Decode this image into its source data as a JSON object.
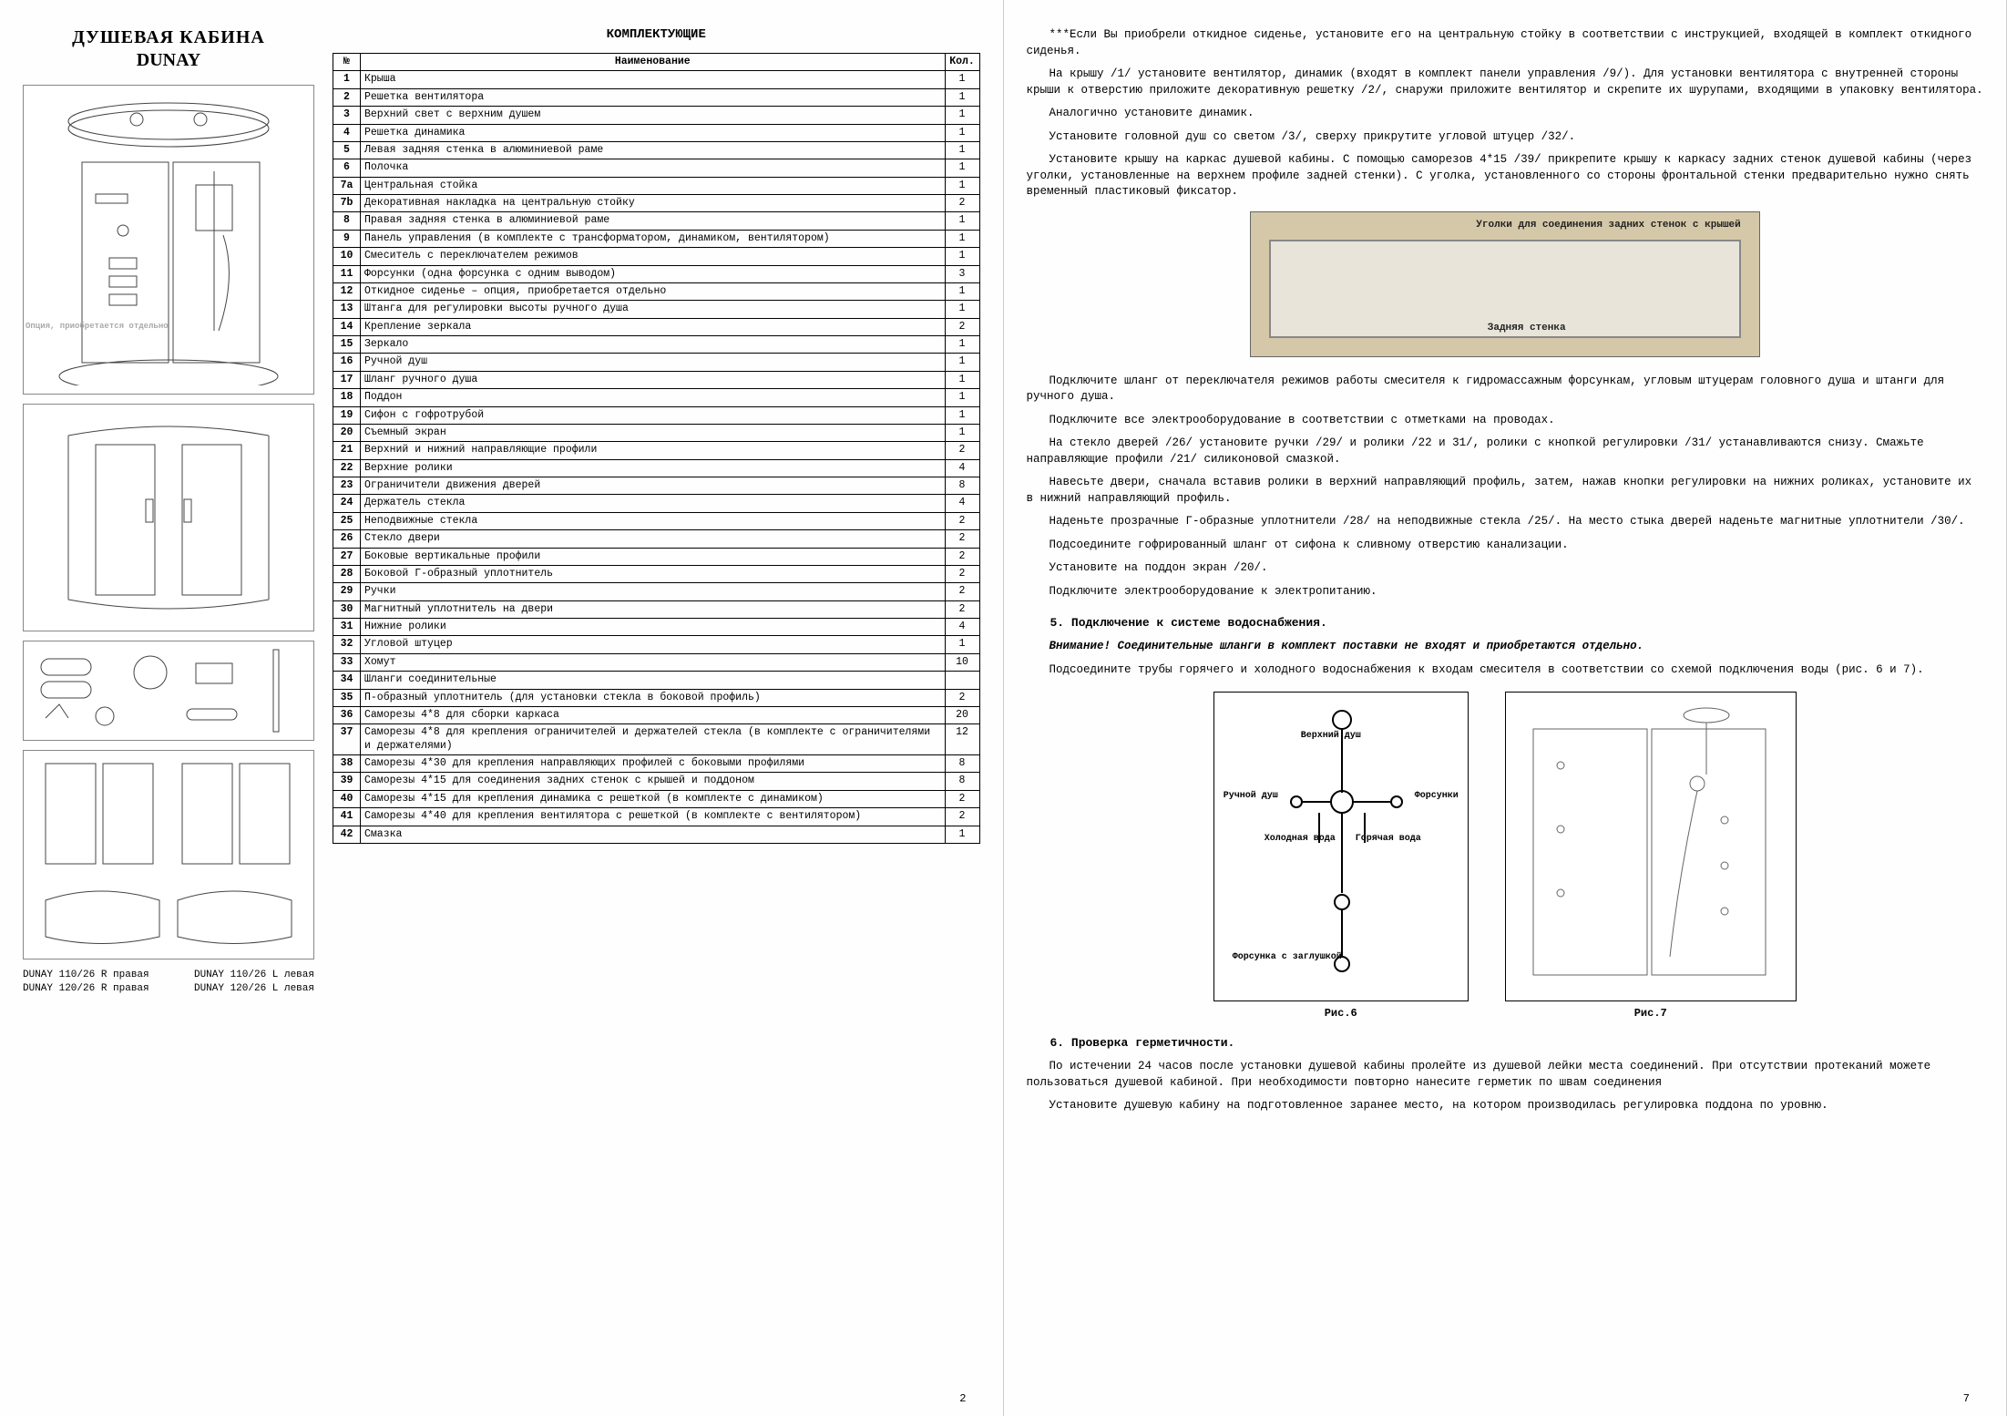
{
  "leftPage": {
    "title": "ДУШЕВАЯ КАБИНА",
    "subtitle": "DUNAY",
    "componentsHeader": "КОМПЛЕКТУЮЩИЕ",
    "optionLabel": "Опция,\nприобретается\nотдельно",
    "tableHeaders": {
      "num": "№",
      "name": "Наименование",
      "qty": "Кол."
    },
    "parts": [
      {
        "n": "1",
        "name": "Крыша",
        "q": "1"
      },
      {
        "n": "2",
        "name": "Решетка вентилятора",
        "q": "1"
      },
      {
        "n": "3",
        "name": "Верхний свет с верхним душем",
        "q": "1"
      },
      {
        "n": "4",
        "name": "Решетка динамика",
        "q": "1"
      },
      {
        "n": "5",
        "name": "Левая задняя стенка в алюминиевой раме",
        "q": "1"
      },
      {
        "n": "6",
        "name": "Полочка",
        "q": "1"
      },
      {
        "n": "7а",
        "name": "Центральная стойка",
        "q": "1"
      },
      {
        "n": "7b",
        "name": "Декоративная накладка на центральную стойку",
        "q": "2"
      },
      {
        "n": "8",
        "name": "Правая задняя стенка в алюминиевой раме",
        "q": "1"
      },
      {
        "n": "9",
        "name": "Панель управления (в комплекте с трансформатором, динамиком, вентилятором)",
        "q": "1"
      },
      {
        "n": "10",
        "name": "Смеситель с переключателем режимов",
        "q": "1"
      },
      {
        "n": "11",
        "name": "Форсунки (одна форсунка с одним выводом)",
        "q": "3"
      },
      {
        "n": "12",
        "name": "Откидное сиденье – опция, приобретается отдельно",
        "q": "1"
      },
      {
        "n": "13",
        "name": "Штанга для регулировки высоты ручного душа",
        "q": "1"
      },
      {
        "n": "14",
        "name": "Крепление зеркала",
        "q": "2"
      },
      {
        "n": "15",
        "name": "Зеркало",
        "q": "1"
      },
      {
        "n": "16",
        "name": "Ручной душ",
        "q": "1"
      },
      {
        "n": "17",
        "name": "Шланг ручного душа",
        "q": "1"
      },
      {
        "n": "18",
        "name": "Поддон",
        "q": "1"
      },
      {
        "n": "19",
        "name": "Сифон с гофротрубой",
        "q": "1"
      },
      {
        "n": "20",
        "name": "Съемный экран",
        "q": "1"
      },
      {
        "n": "21",
        "name": "Верхний и нижний направляющие профили",
        "q": "2"
      },
      {
        "n": "22",
        "name": "Верхние ролики",
        "q": "4"
      },
      {
        "n": "23",
        "name": "Ограничители движения дверей",
        "q": "8"
      },
      {
        "n": "24",
        "name": "Держатель стекла",
        "q": "4"
      },
      {
        "n": "25",
        "name": "Неподвижные стекла",
        "q": "2"
      },
      {
        "n": "26",
        "name": "Стекло двери",
        "q": "2"
      },
      {
        "n": "27",
        "name": "Боковые вертикальные профили",
        "q": "2"
      },
      {
        "n": "28",
        "name": "Боковой Г-образный уплотнитель",
        "q": "2"
      },
      {
        "n": "29",
        "name": "Ручки",
        "q": "2"
      },
      {
        "n": "30",
        "name": "Магнитный уплотнитель на двери",
        "q": "2"
      },
      {
        "n": "31",
        "name": "Нижние ролики",
        "q": "4"
      },
      {
        "n": "32",
        "name": "Угловой штуцер",
        "q": "1"
      },
      {
        "n": "33",
        "name": "Хомут",
        "q": "10"
      },
      {
        "n": "34",
        "name": "Шланги соединительные",
        "q": ""
      },
      {
        "n": "35",
        "name": "П-образный уплотнитель (для установки стекла в боковой профиль)",
        "q": "2"
      },
      {
        "n": "36",
        "name": "Саморезы 4*8 для сборки каркаса",
        "q": "20"
      },
      {
        "n": "37",
        "name": "Саморезы 4*8 для крепления ограничителей и держателей стекла (в комплекте с ограничителями и держателями)",
        "q": "12"
      },
      {
        "n": "38",
        "name": "Саморезы 4*30 для крепления направляющих профилей с боковыми профилями",
        "q": "8"
      },
      {
        "n": "39",
        "name": "Саморезы 4*15 для соединения задних стенок с крышей и поддоном",
        "q": "8"
      },
      {
        "n": "40",
        "name": "Саморезы 4*15 для крепления динамика с решеткой (в комплекте с динамиком)",
        "q": "2"
      },
      {
        "n": "41",
        "name": "Саморезы 4*40 для крепления вентилятора с решеткой (в комплекте с вентилятором)",
        "q": "2"
      },
      {
        "n": "42",
        "name": "Смазка",
        "q": "1"
      }
    ],
    "variants": {
      "leftTop": "DUNAY 110/26 R правая",
      "leftBot": "DUNAY 120/26 R правая",
      "rightTop": "DUNAY 110/26 L левая",
      "rightBot": "DUNAY 120/26 L левая"
    },
    "pageNum": "2"
  },
  "rightPage": {
    "paragraphs1": [
      "***Если Вы приобрели откидное сиденье, установите его на центральную стойку в соответствии с инструкцией, входящей в комплект откидного сиденья.",
      "На крышу /1/ установите вентилятор, динамик (входят в комплект панели управления /9/). Для установки вентилятора с внутренней стороны крыши к отверстию приложите декоративную решетку /2/, снаружи приложите вентилятор и скрепите их шурупами, входящими в упаковку вентилятора.",
      "Аналогично установите динамик.",
      "Установите головной душ со светом /3/, сверху прикрутите угловой штуцер /32/.",
      "Установите крышу на каркас душевой кабины. С помощью саморезов 4*15 /39/ прикрепите крышу к каркасу задних стенок душевой кабины (через уголки, установленные на верхнем профиле задней стенки). С уголка, установленного со стороны фронтальной стенки предварительно нужно снять временный пластиковый фиксатор."
    ],
    "photoCaption1": "Уголки для соединения задних стенок с крышей",
    "photoCaption2": "Задняя стенка",
    "paragraphs2": [
      "Подключите шланг от переключателя режимов работы смесителя к гидромассажным форсункам, угловым штуцерам головного душа и штанги для ручного душа.",
      "Подключите все электрооборудование в соответствии с отметками на проводах.",
      "На стекло дверей /26/ установите ручки /29/ и ролики /22 и 31/, ролики с кнопкой регулировки /31/ устанавливаются снизу. Смажьте направляющие профили /21/ силиконовой смазкой.",
      "Навесьте двери, сначала вставив ролики в верхний направляющий профиль, затем, нажав кнопки регулировки на нижних роликах, установите их в нижний направляющий профиль.",
      "Наденьте прозрачные Г-образные уплотнители /28/ на неподвижные стекла /25/. На место стыка дверей наденьте магнитные уплотнители /30/.",
      "Подсоедините гофрированный шланг от сифона к сливному отверстию канализации.",
      "Установите на поддон экран /20/.",
      "Подключите электрооборудование к электропитанию."
    ],
    "section5Title": "5. Подключение к системе водоснабжения.",
    "warning": "Внимание! Соединительные шланги в комплект поставки не входят и приобретаются отдельно.",
    "section5Text": "Подсоедините трубы горячего и холодного водоснабжения к входам смесителя в соответствии со схемой подключения воды (рис. 6 и 7).",
    "fig6Labels": {
      "top": "Верхний душ",
      "hand": "Ручной душ",
      "jets": "Форсунки",
      "cold": "Холодная вода",
      "hot": "Горячая вода",
      "plug": "Форсунка с заглушкой",
      "caption": "Рис.6"
    },
    "fig7Caption": "Рис.7",
    "section6Title": "6. Проверка герметичности.",
    "section6Paras": [
      "По истечении 24 часов после установки душевой кабины пролейте из душевой лейки места соединений. При отсутствии протеканий можете пользоваться душевой кабиной. При необходимости повторно нанесите герметик по швам соединения",
      "Установите душевую кабину на подготовленное заранее место, на котором производилась регулировка поддона по уровню."
    ],
    "pageNum": "7"
  }
}
